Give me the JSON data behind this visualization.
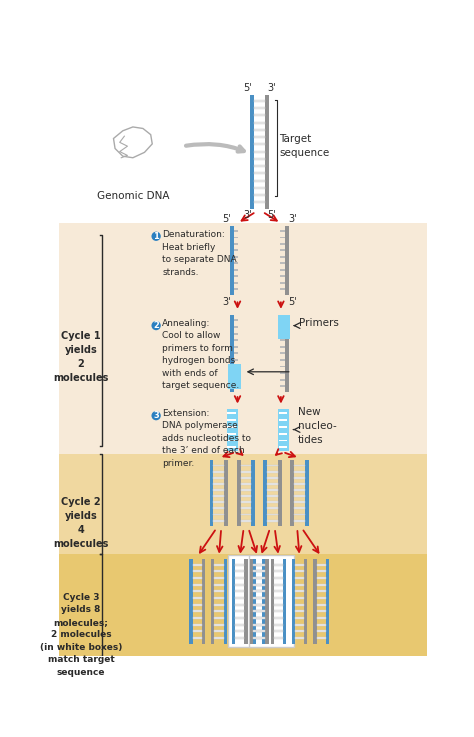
{
  "bg_top": "#ffffff",
  "bg_cycle1": "#f7ead8",
  "bg_cycle2": "#f0d8a0",
  "bg_cycle3": "#e8c870",
  "dna_blue": "#4a90c4",
  "dna_gray": "#909090",
  "dna_rung": "#e8e8e8",
  "primer_color": "#7fd4f4",
  "arrow_red": "#cc1111",
  "arrow_gray": "#aaaaaa",
  "text_dark": "#2a2a2a",
  "circle_blue": "#2a7fc0",
  "label_step1": "Denaturation:\nHeat briefly\nto separate DNA\nstrands.",
  "label_step2": "Annealing:\nCool to allow\nprimers to form\nhydrogen bonds\nwith ends of\ntarget sequence.",
  "label_step3": "Extension:\nDNA polymerase\nadds nucleotides to\nthe 3’ end of each\nprimer.",
  "cycle1_label": "Cycle 1\nyields\n2\nmolecules",
  "cycle2_label": "Cycle 2\nyields\n4\nmolecules",
  "cycle3_label": "Cycle 3\nyields 8\nmolecules;\n2 molecules\n(in white boxes)\nmatch target\nsequence",
  "genomic_dna": "Genomic DNA",
  "target_seq": "Target\nsequence",
  "primers_label": "Primers",
  "new_nucl": "New\nnucleo-\ntides"
}
